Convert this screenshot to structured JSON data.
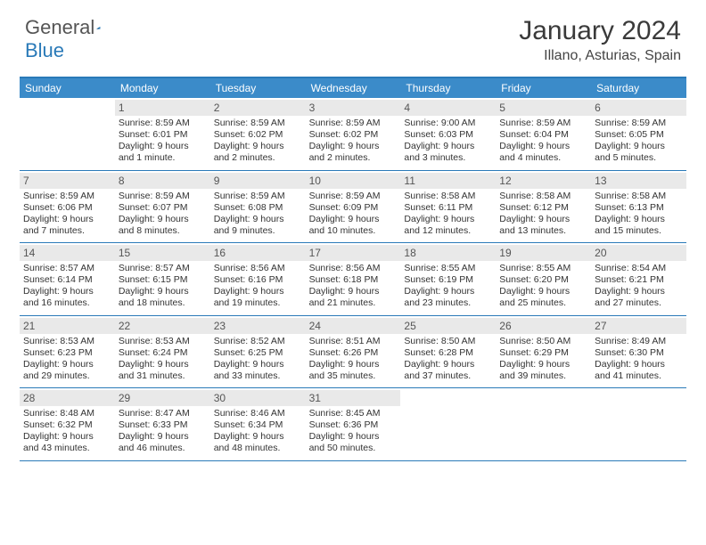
{
  "logo": {
    "general": "General",
    "blue": "Blue"
  },
  "title": "January 2024",
  "location": "Illano, Asturias, Spain",
  "header_color": "#3b8bc9",
  "border_color": "#2a7ab8",
  "daynum_bg": "#e9e9e9",
  "dow": [
    "Sunday",
    "Monday",
    "Tuesday",
    "Wednesday",
    "Thursday",
    "Friday",
    "Saturday"
  ],
  "weeks": [
    [
      {
        "n": "",
        "sr": "",
        "ss": "",
        "dl1": "",
        "dl2": ""
      },
      {
        "n": "1",
        "sr": "Sunrise: 8:59 AM",
        "ss": "Sunset: 6:01 PM",
        "dl1": "Daylight: 9 hours",
        "dl2": "and 1 minute."
      },
      {
        "n": "2",
        "sr": "Sunrise: 8:59 AM",
        "ss": "Sunset: 6:02 PM",
        "dl1": "Daylight: 9 hours",
        "dl2": "and 2 minutes."
      },
      {
        "n": "3",
        "sr": "Sunrise: 8:59 AM",
        "ss": "Sunset: 6:02 PM",
        "dl1": "Daylight: 9 hours",
        "dl2": "and 2 minutes."
      },
      {
        "n": "4",
        "sr": "Sunrise: 9:00 AM",
        "ss": "Sunset: 6:03 PM",
        "dl1": "Daylight: 9 hours",
        "dl2": "and 3 minutes."
      },
      {
        "n": "5",
        "sr": "Sunrise: 8:59 AM",
        "ss": "Sunset: 6:04 PM",
        "dl1": "Daylight: 9 hours",
        "dl2": "and 4 minutes."
      },
      {
        "n": "6",
        "sr": "Sunrise: 8:59 AM",
        "ss": "Sunset: 6:05 PM",
        "dl1": "Daylight: 9 hours",
        "dl2": "and 5 minutes."
      }
    ],
    [
      {
        "n": "7",
        "sr": "Sunrise: 8:59 AM",
        "ss": "Sunset: 6:06 PM",
        "dl1": "Daylight: 9 hours",
        "dl2": "and 7 minutes."
      },
      {
        "n": "8",
        "sr": "Sunrise: 8:59 AM",
        "ss": "Sunset: 6:07 PM",
        "dl1": "Daylight: 9 hours",
        "dl2": "and 8 minutes."
      },
      {
        "n": "9",
        "sr": "Sunrise: 8:59 AM",
        "ss": "Sunset: 6:08 PM",
        "dl1": "Daylight: 9 hours",
        "dl2": "and 9 minutes."
      },
      {
        "n": "10",
        "sr": "Sunrise: 8:59 AM",
        "ss": "Sunset: 6:09 PM",
        "dl1": "Daylight: 9 hours",
        "dl2": "and 10 minutes."
      },
      {
        "n": "11",
        "sr": "Sunrise: 8:58 AM",
        "ss": "Sunset: 6:11 PM",
        "dl1": "Daylight: 9 hours",
        "dl2": "and 12 minutes."
      },
      {
        "n": "12",
        "sr": "Sunrise: 8:58 AM",
        "ss": "Sunset: 6:12 PM",
        "dl1": "Daylight: 9 hours",
        "dl2": "and 13 minutes."
      },
      {
        "n": "13",
        "sr": "Sunrise: 8:58 AM",
        "ss": "Sunset: 6:13 PM",
        "dl1": "Daylight: 9 hours",
        "dl2": "and 15 minutes."
      }
    ],
    [
      {
        "n": "14",
        "sr": "Sunrise: 8:57 AM",
        "ss": "Sunset: 6:14 PM",
        "dl1": "Daylight: 9 hours",
        "dl2": "and 16 minutes."
      },
      {
        "n": "15",
        "sr": "Sunrise: 8:57 AM",
        "ss": "Sunset: 6:15 PM",
        "dl1": "Daylight: 9 hours",
        "dl2": "and 18 minutes."
      },
      {
        "n": "16",
        "sr": "Sunrise: 8:56 AM",
        "ss": "Sunset: 6:16 PM",
        "dl1": "Daylight: 9 hours",
        "dl2": "and 19 minutes."
      },
      {
        "n": "17",
        "sr": "Sunrise: 8:56 AM",
        "ss": "Sunset: 6:18 PM",
        "dl1": "Daylight: 9 hours",
        "dl2": "and 21 minutes."
      },
      {
        "n": "18",
        "sr": "Sunrise: 8:55 AM",
        "ss": "Sunset: 6:19 PM",
        "dl1": "Daylight: 9 hours",
        "dl2": "and 23 minutes."
      },
      {
        "n": "19",
        "sr": "Sunrise: 8:55 AM",
        "ss": "Sunset: 6:20 PM",
        "dl1": "Daylight: 9 hours",
        "dl2": "and 25 minutes."
      },
      {
        "n": "20",
        "sr": "Sunrise: 8:54 AM",
        "ss": "Sunset: 6:21 PM",
        "dl1": "Daylight: 9 hours",
        "dl2": "and 27 minutes."
      }
    ],
    [
      {
        "n": "21",
        "sr": "Sunrise: 8:53 AM",
        "ss": "Sunset: 6:23 PM",
        "dl1": "Daylight: 9 hours",
        "dl2": "and 29 minutes."
      },
      {
        "n": "22",
        "sr": "Sunrise: 8:53 AM",
        "ss": "Sunset: 6:24 PM",
        "dl1": "Daylight: 9 hours",
        "dl2": "and 31 minutes."
      },
      {
        "n": "23",
        "sr": "Sunrise: 8:52 AM",
        "ss": "Sunset: 6:25 PM",
        "dl1": "Daylight: 9 hours",
        "dl2": "and 33 minutes."
      },
      {
        "n": "24",
        "sr": "Sunrise: 8:51 AM",
        "ss": "Sunset: 6:26 PM",
        "dl1": "Daylight: 9 hours",
        "dl2": "and 35 minutes."
      },
      {
        "n": "25",
        "sr": "Sunrise: 8:50 AM",
        "ss": "Sunset: 6:28 PM",
        "dl1": "Daylight: 9 hours",
        "dl2": "and 37 minutes."
      },
      {
        "n": "26",
        "sr": "Sunrise: 8:50 AM",
        "ss": "Sunset: 6:29 PM",
        "dl1": "Daylight: 9 hours",
        "dl2": "and 39 minutes."
      },
      {
        "n": "27",
        "sr": "Sunrise: 8:49 AM",
        "ss": "Sunset: 6:30 PM",
        "dl1": "Daylight: 9 hours",
        "dl2": "and 41 minutes."
      }
    ],
    [
      {
        "n": "28",
        "sr": "Sunrise: 8:48 AM",
        "ss": "Sunset: 6:32 PM",
        "dl1": "Daylight: 9 hours",
        "dl2": "and 43 minutes."
      },
      {
        "n": "29",
        "sr": "Sunrise: 8:47 AM",
        "ss": "Sunset: 6:33 PM",
        "dl1": "Daylight: 9 hours",
        "dl2": "and 46 minutes."
      },
      {
        "n": "30",
        "sr": "Sunrise: 8:46 AM",
        "ss": "Sunset: 6:34 PM",
        "dl1": "Daylight: 9 hours",
        "dl2": "and 48 minutes."
      },
      {
        "n": "31",
        "sr": "Sunrise: 8:45 AM",
        "ss": "Sunset: 6:36 PM",
        "dl1": "Daylight: 9 hours",
        "dl2": "and 50 minutes."
      },
      {
        "n": "",
        "sr": "",
        "ss": "",
        "dl1": "",
        "dl2": ""
      },
      {
        "n": "",
        "sr": "",
        "ss": "",
        "dl1": "",
        "dl2": ""
      },
      {
        "n": "",
        "sr": "",
        "ss": "",
        "dl1": "",
        "dl2": ""
      }
    ]
  ]
}
